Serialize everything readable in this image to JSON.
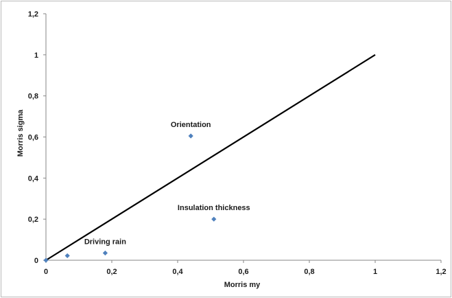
{
  "chart_data": {
    "type": "scatter",
    "xlabel": "Morris my",
    "ylabel": "Morris sigma",
    "xlim": [
      0,
      1.2
    ],
    "ylim": [
      0,
      1.2
    ],
    "x_ticks": [
      "0",
      "0,2",
      "0,4",
      "0,6",
      "0,8",
      "1",
      "1,2"
    ],
    "y_ticks": [
      "0",
      "0,2",
      "0,4",
      "0,6",
      "0,8",
      "1",
      "1,2"
    ],
    "grid": false,
    "legend": "none",
    "marker_color": "#4f81bd",
    "reference_line": {
      "from": [
        0,
        0
      ],
      "to": [
        1,
        1
      ],
      "color": "#000000"
    },
    "points": [
      {
        "x": 0.0,
        "y": 0.0,
        "label": ""
      },
      {
        "x": 0.065,
        "y": 0.022,
        "label": ""
      },
      {
        "x": 0.18,
        "y": 0.035,
        "label": "Driving rain"
      },
      {
        "x": 0.44,
        "y": 0.605,
        "label": "Orientation"
      },
      {
        "x": 0.51,
        "y": 0.2,
        "label": "Insulation thickness"
      }
    ]
  }
}
